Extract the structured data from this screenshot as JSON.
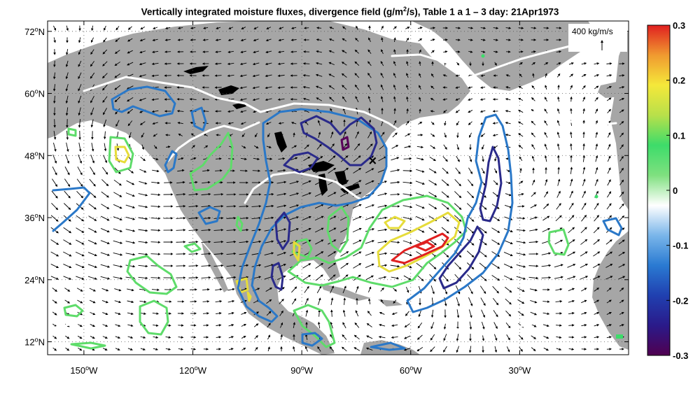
{
  "title": {
    "prefix": "Vertically integrated moisture fluxes, divergence field (g/m",
    "sup": "2",
    "suffix": "/s), Table 1 a 1 – 3 day: 21Apr1973"
  },
  "axes": {
    "lon_range": [
      -160,
      0
    ],
    "lat_range": [
      9.5,
      74
    ],
    "lon_ticks": [
      {
        "value": -150,
        "label": "150",
        "deg": "o",
        "hem": "W"
      },
      {
        "value": -120,
        "label": "120",
        "deg": "o",
        "hem": "W"
      },
      {
        "value": -90,
        "label": "90",
        "deg": "o",
        "hem": "W"
      },
      {
        "value": -60,
        "label": "60",
        "deg": "o",
        "hem": "W"
      },
      {
        "value": -30,
        "label": "30",
        "deg": "o",
        "hem": "W"
      }
    ],
    "lat_ticks": [
      {
        "value": 72,
        "label": "72",
        "deg": "o",
        "hem": "N"
      },
      {
        "value": 60,
        "label": "60",
        "deg": "o",
        "hem": "N"
      },
      {
        "value": 48,
        "label": "48",
        "deg": "o",
        "hem": "N"
      },
      {
        "value": 36,
        "label": "36",
        "deg": "o",
        "hem": "N"
      },
      {
        "value": 24,
        "label": "24",
        "deg": "o",
        "hem": "N"
      },
      {
        "value": 12,
        "label": "12",
        "deg": "o",
        "hem": "N"
      }
    ],
    "grid": "dotted"
  },
  "reference_vector": {
    "label": "400  kg/m/s"
  },
  "colorbar": {
    "min": -0.3,
    "max": 0.3,
    "tick_labels": [
      "0.3",
      "0.2",
      "0.1",
      "0",
      "-0.1",
      "-0.2",
      "-0.3"
    ],
    "stops": [
      "#500050",
      "#2a1a8a",
      "#2040b0",
      "#2a7ad2",
      "#7ab6ea",
      "#ffffff",
      "#7fe07f",
      "#3ddc6a",
      "#b8e04a",
      "#f5e83a",
      "#f09a30",
      "#e02020"
    ]
  },
  "colors": {
    "land": "#a6a6a6",
    "ocean": "#ffffff",
    "zero_contour": "#ffffff",
    "lakes": "#000000"
  },
  "contour_colors": {
    "p03": "#e02020",
    "p02": "#e6dc3a",
    "p01": "#5edc6a",
    "m01": "#2a78c8",
    "m02": "#2a2a8a",
    "m03": "#5a005a"
  },
  "marker": {
    "symbol": "×",
    "lon": -70.5,
    "lat": 47
  }
}
